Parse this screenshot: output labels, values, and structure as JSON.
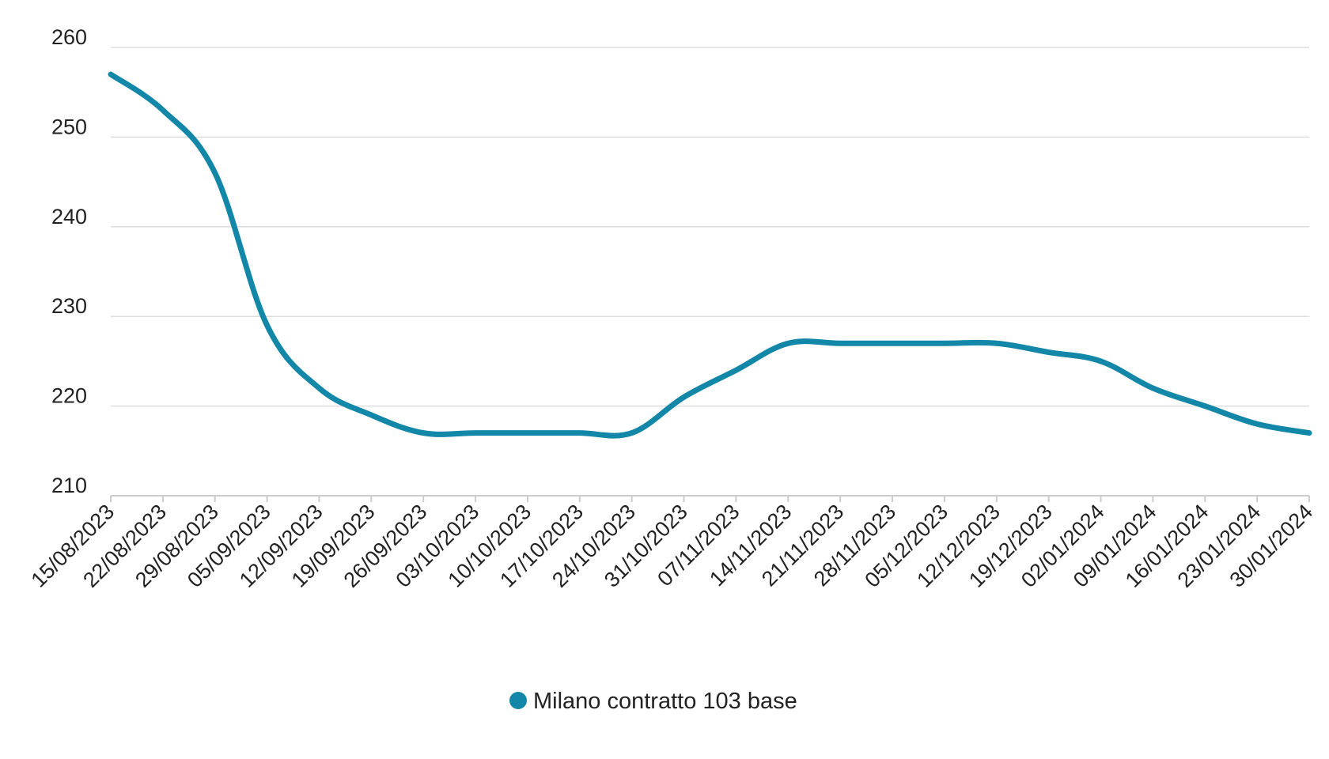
{
  "chart_data": {
    "type": "line",
    "title": "",
    "xlabel": "",
    "ylabel": "",
    "ylim": [
      210,
      260
    ],
    "y_ticks": [
      "260",
      "250",
      "240",
      "230",
      "220",
      "210"
    ],
    "grid": "horizontal",
    "legend_position": "bottom-center",
    "categories": [
      "15/08/2023",
      "22/08/2023",
      "29/08/2023",
      "05/09/2023",
      "12/09/2023",
      "19/09/2023",
      "26/09/2023",
      "03/10/2023",
      "10/10/2023",
      "17/10/2023",
      "24/10/2023",
      "31/10/2023",
      "07/11/2023",
      "14/11/2023",
      "21/11/2023",
      "28/11/2023",
      "05/12/2023",
      "12/12/2023",
      "19/12/2023",
      "02/01/2024",
      "09/01/2024",
      "16/01/2024",
      "23/01/2024",
      "30/01/2024"
    ],
    "series": [
      {
        "name": "Milano contratto 103 base",
        "color": "#1287a8",
        "values": [
          257,
          253,
          246,
          229,
          222,
          219,
          217,
          217,
          217,
          217,
          217,
          221,
          224,
          227,
          227,
          227,
          227,
          227,
          226,
          225,
          222,
          220,
          218,
          217
        ]
      }
    ]
  }
}
